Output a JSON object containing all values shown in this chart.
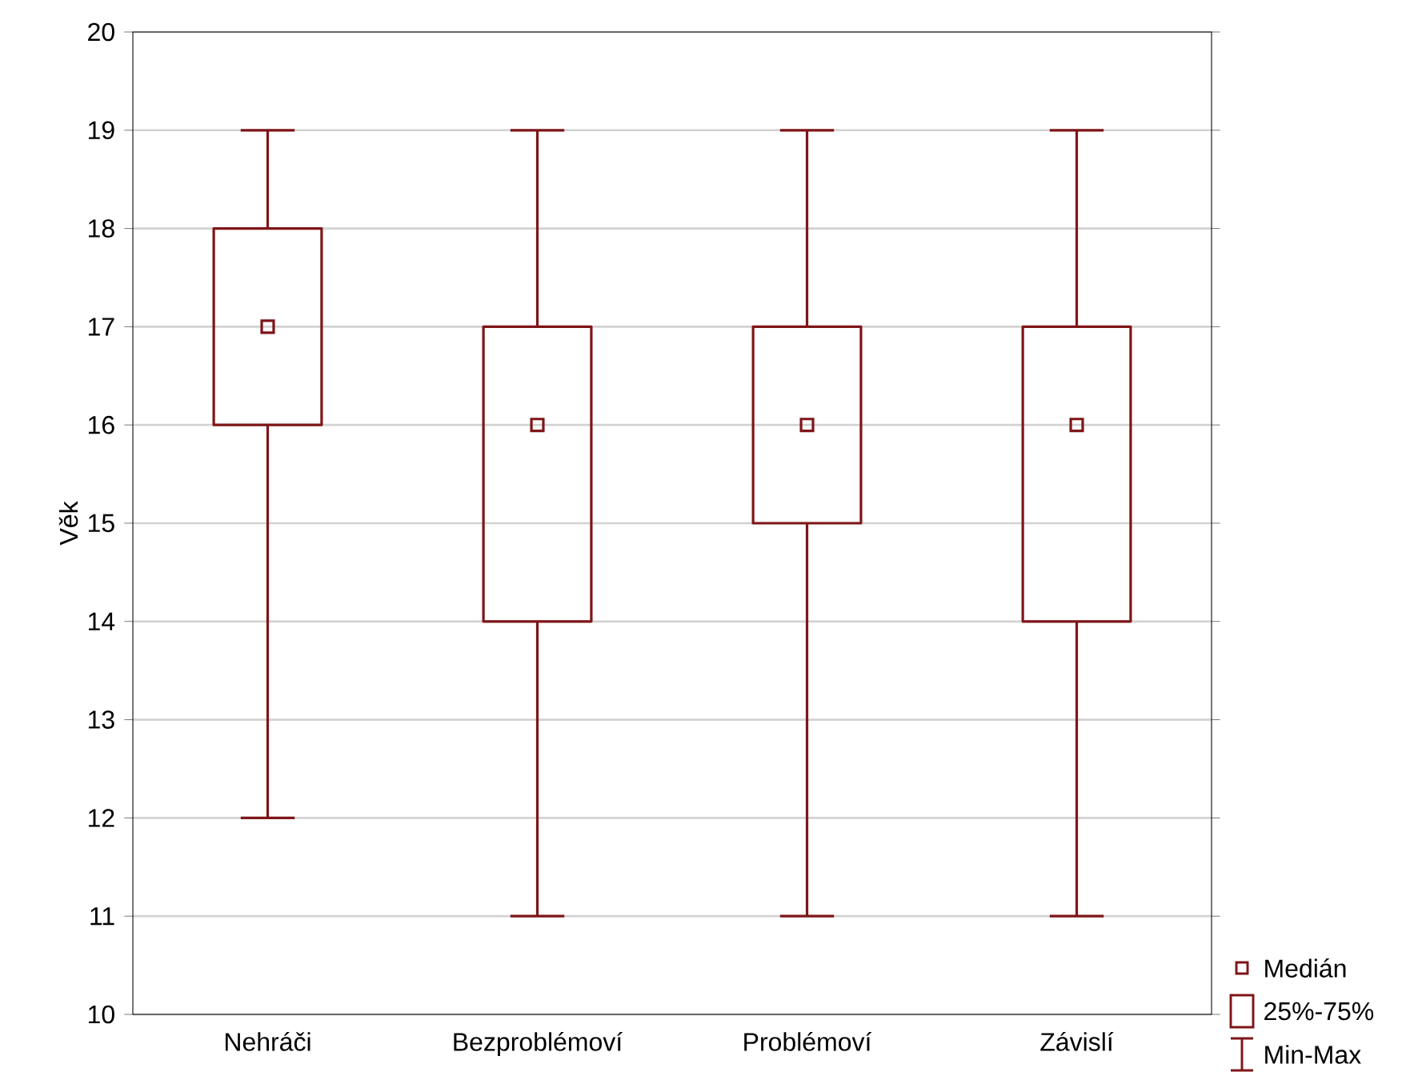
{
  "chart_data": {
    "type": "box",
    "ylabel": "Věk",
    "categories": [
      "Nehráči",
      "Bezproblémoví",
      "Problémoví",
      "Závislí"
    ],
    "boxes": [
      {
        "low": 12,
        "q1": 16,
        "median": 17,
        "q3": 18,
        "high": 19
      },
      {
        "low": 11,
        "q1": 14,
        "median": 16,
        "q3": 17,
        "high": 19
      },
      {
        "low": 11,
        "q1": 15,
        "median": 16,
        "q3": 17,
        "high": 19
      },
      {
        "low": 11,
        "q1": 14,
        "median": 16,
        "q3": 17,
        "high": 19
      }
    ],
    "color": "#7f1518",
    "marker": "square",
    "ylim": [
      10,
      20
    ],
    "yticks": [
      10,
      11,
      12,
      13,
      14,
      15,
      16,
      17,
      18,
      19,
      20
    ],
    "grid": "y",
    "annotations": [
      "Medián",
      "25%-75%",
      "Min-Max"
    ]
  }
}
